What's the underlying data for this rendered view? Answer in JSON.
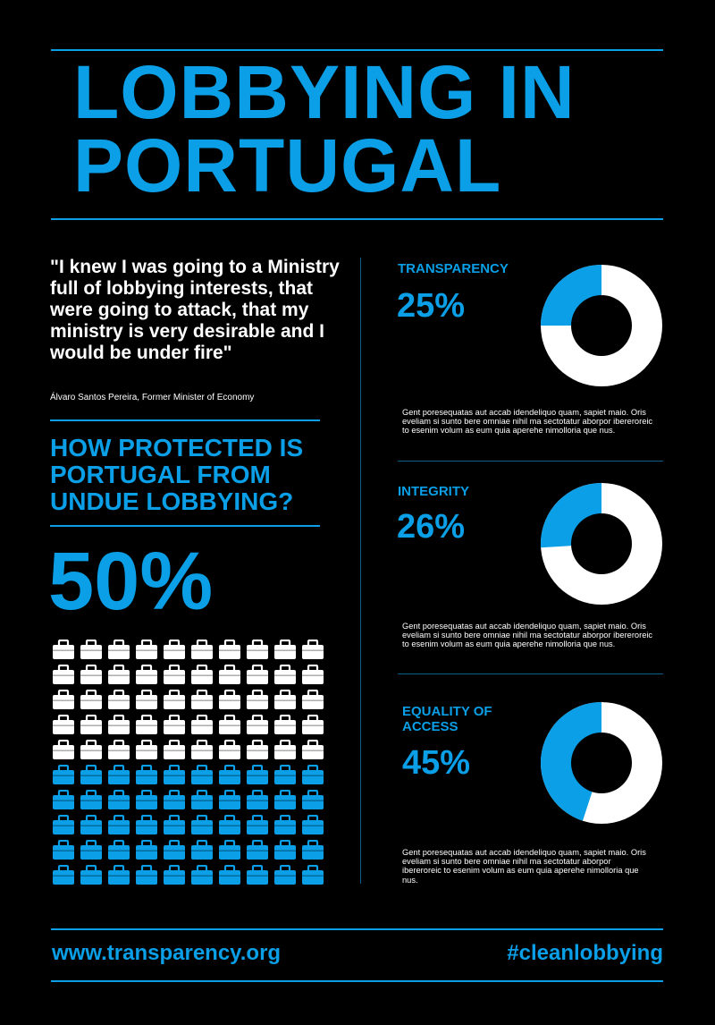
{
  "header": {
    "title": "LOBBYING IN PORTUGAL"
  },
  "quote": {
    "text": "\"I knew I was going to a Ministry full of lobbying interests, that were going to attack, that my ministry is very desirable and I would be under fire\"",
    "attribution": "Álvaro Santos Pereira, Former Minister of Economy"
  },
  "protection": {
    "question": "HOW PROTECTED IS PORTUGAL FROM UNDUE LOBBYING?",
    "value_label": "50%",
    "value": 50,
    "grid_total": 100,
    "grid_icon": "briefcase-icon",
    "colors": {
      "filled": "#0a9fe6",
      "empty": "#ffffff"
    }
  },
  "metrics": [
    {
      "label": "TRANSPARENCY",
      "value_label": "25%",
      "value": 25,
      "description": "Gent poresequatas aut accab idendeliquo quam, sapiet maio. Oris eveliam si sunto bere omniae nihil ma sectotatur aborpor ibereroreic to esenim volum as eum quia aperehe nimolloria que nus."
    },
    {
      "label": "INTEGRITY",
      "value_label": "26%",
      "value": 26,
      "description": "Gent poresequatas aut accab idendeliquo quam, sapiet maio. Oris eveliam si sunto bere omniae nihil ma sectotatur aborpor ibereroreic to esenim volum as eum quia aperehe nimolloria que nus."
    },
    {
      "label": "EQUALITY OF ACCESS",
      "value_label": "45%",
      "value": 45,
      "description": "Gent poresequatas aut accab idendeliquo quam, sapiet maio. Oris eveliam si sunto bere omniae nihil ma sectotatur aborpor ibereroreic to esenim volum as eum quia aperehe nimolloria que nus."
    }
  ],
  "footer": {
    "url": "www.transparency.org",
    "hashtag": "#cleanlobbying"
  },
  "colors": {
    "accent": "#0a9fe6",
    "background": "#000000",
    "text": "#ffffff"
  }
}
